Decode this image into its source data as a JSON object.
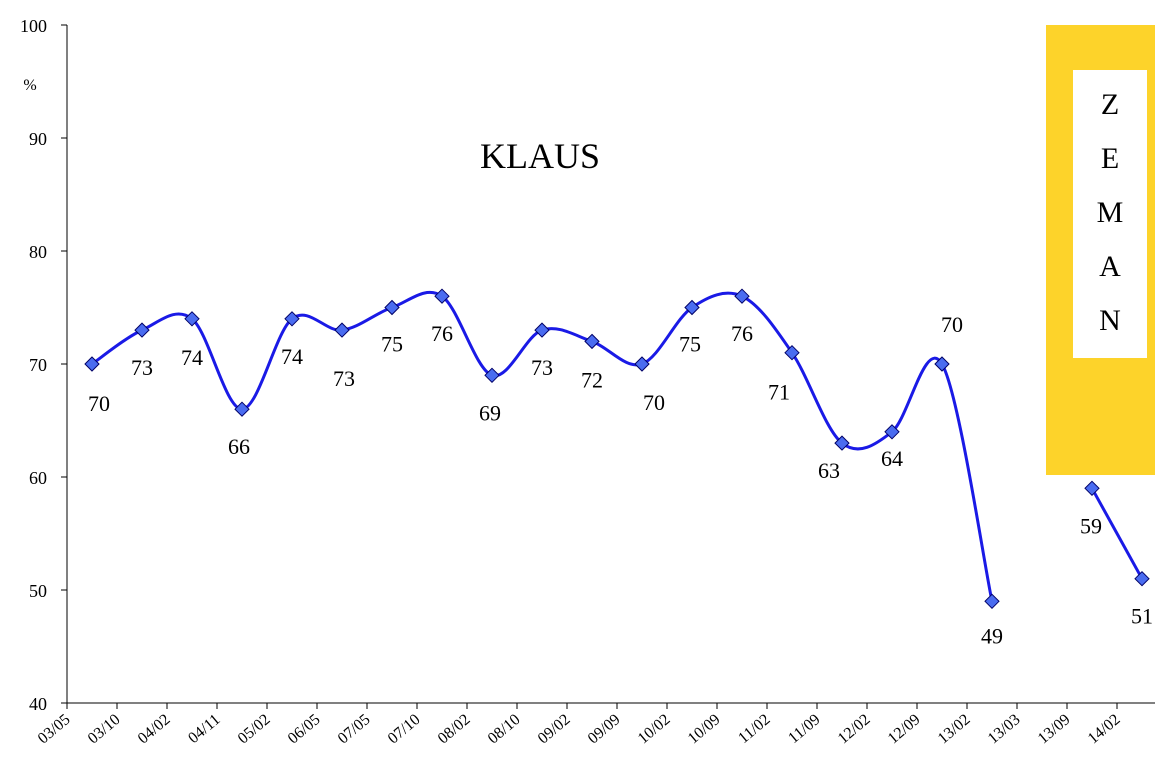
{
  "chart_data": {
    "type": "line",
    "annotations": [
      "%",
      "KLAUS",
      "ZEMAN"
    ],
    "categories": [
      "03/05",
      "03/10",
      "04/02",
      "04/11",
      "05/02",
      "06/05",
      "07/05",
      "07/10",
      "08/02",
      "08/10",
      "09/02",
      "09/09",
      "10/02",
      "10/09",
      "11/02",
      "11/09",
      "12/02",
      "12/09",
      "13/02",
      "13/03",
      "13/09",
      "14/02"
    ],
    "values": [
      70,
      73,
      74,
      66,
      74,
      73,
      75,
      76,
      69,
      73,
      72,
      70,
      75,
      76,
      71,
      63,
      64,
      70,
      49,
      null,
      59,
      51
    ],
    "color": "#1a1ae6",
    "marker_color": "#4a6cf0",
    "ylim": [
      40,
      100
    ],
    "yticks": [
      40,
      50,
      60,
      70,
      80,
      90,
      100
    ]
  }
}
